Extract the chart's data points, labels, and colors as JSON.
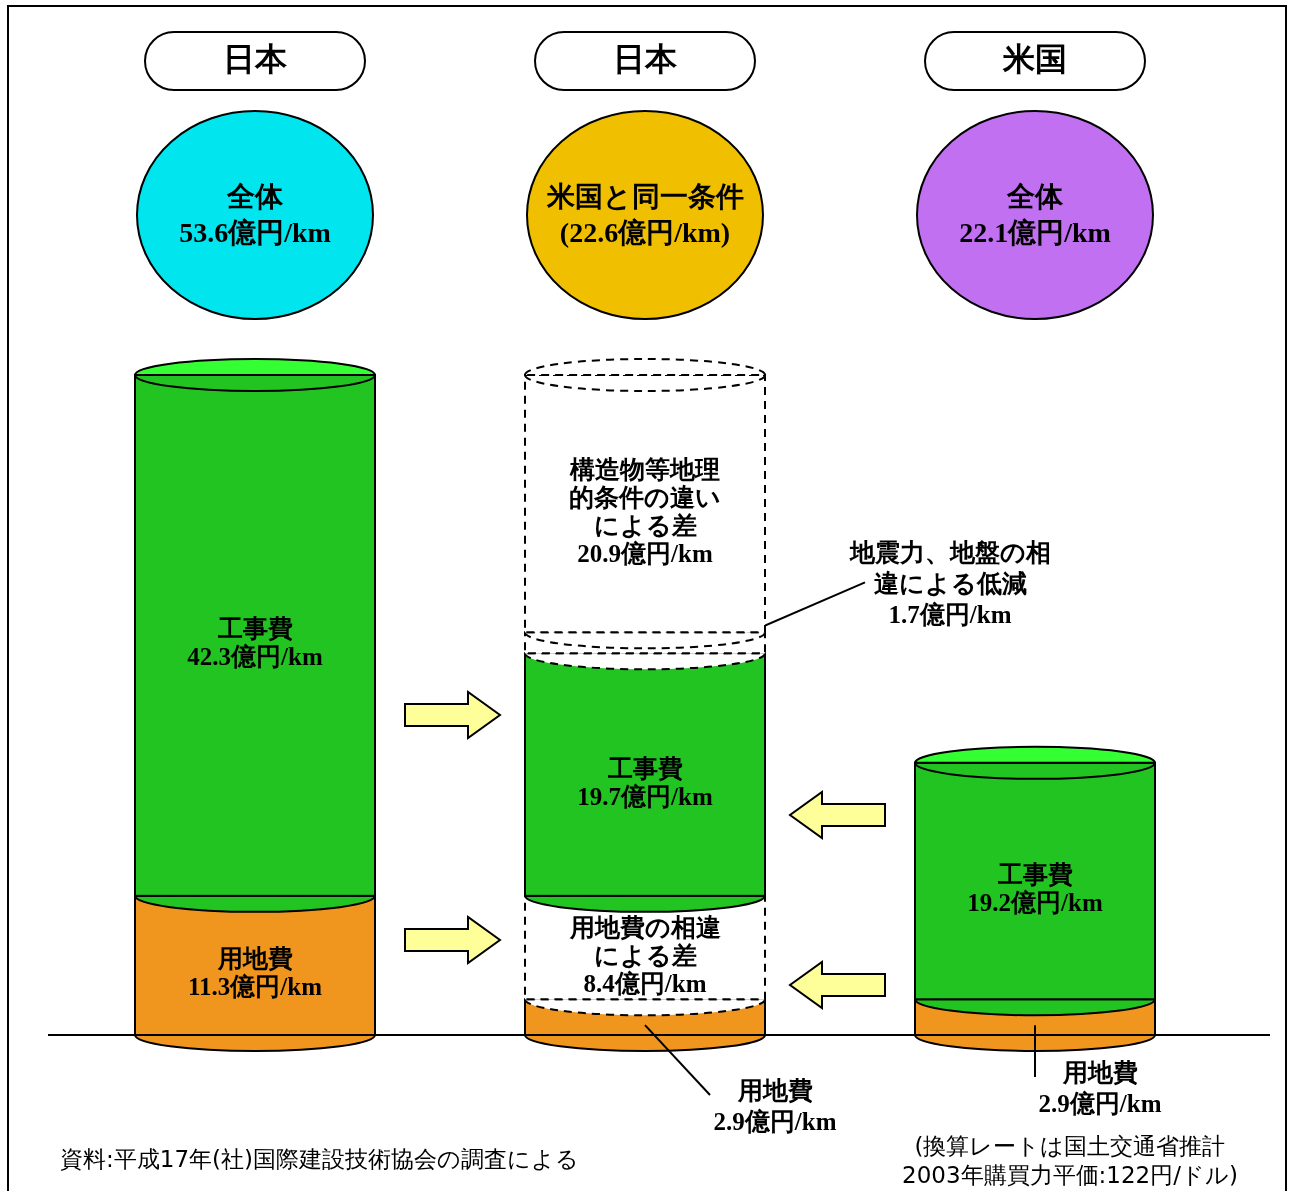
{
  "chart_data": {
    "type": "bar",
    "stacked": true,
    "categories": [
      "日本",
      "日本",
      "米国"
    ],
    "series": [
      {
        "name": "用地費",
        "color": "#f0961e",
        "values": [
          11.3,
          2.9,
          2.9
        ],
        "value_labels": [
          "11.3億円/km",
          "2.9億円/km",
          "2.9億円/km"
        ]
      },
      {
        "name": "用地費の相違による差",
        "color": "#ffffff",
        "line_style": "dashed",
        "values": [
          null,
          8.4,
          null
        ],
        "value_labels": [
          null,
          "8.4億円/km",
          null
        ]
      },
      {
        "name": "工事費",
        "color": "#22c422",
        "values": [
          42.3,
          19.7,
          19.2
        ],
        "value_labels": [
          "42.3億円/km",
          "19.7億円/km",
          "19.2億円/km"
        ]
      },
      {
        "name": "地震力、地盤の相違による低減",
        "color": "#ffffff",
        "line_style": "dashed",
        "values": [
          null,
          1.7,
          null
        ],
        "value_labels": [
          null,
          "1.7億円/km",
          null
        ]
      },
      {
        "name": "構造物等地理的条件の違いによる差",
        "color": "#ffffff",
        "line_style": "dashed",
        "values": [
          null,
          20.9,
          null
        ],
        "value_labels": [
          null,
          "20.9億円/km",
          null
        ]
      }
    ],
    "annotations": [
      "全体 53.6億円/km",
      "米国と同一条件 (22.6億円/km)",
      "全体 22.1億円/km",
      "資料:平成17年(社)国際建設技術協会の調査による",
      "(換算レートは国土交通省推計 2003年購買力平価:122円/ドル)"
    ]
  }
}
